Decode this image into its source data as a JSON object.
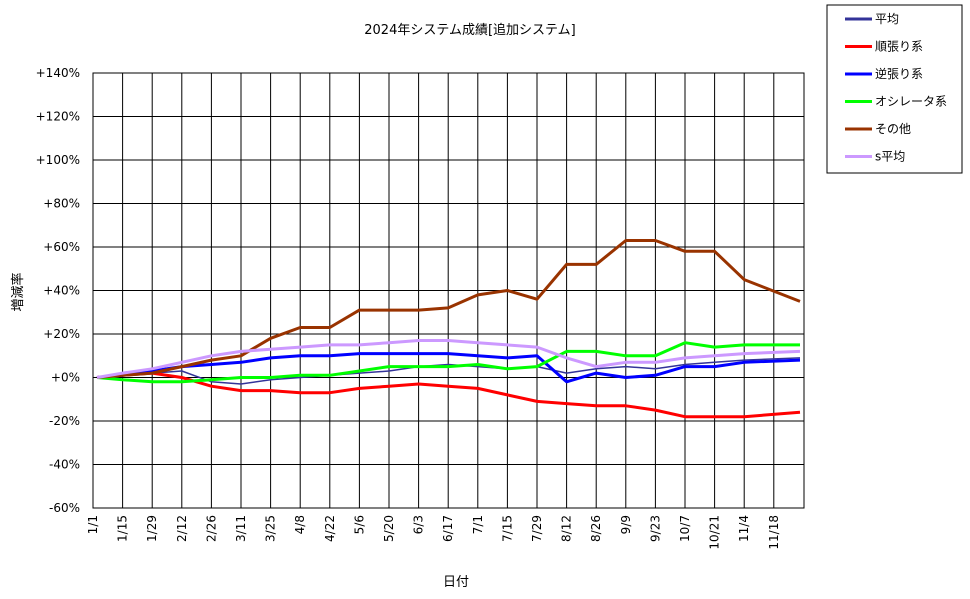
{
  "chart_data": {
    "type": "line",
    "title": "2024年システム成績[追加システム]",
    "xlabel": "日付",
    "ylabel": "増減率",
    "ylim": [
      -60,
      140
    ],
    "yticks": [
      140,
      120,
      100,
      80,
      60,
      40,
      20,
      0,
      -20,
      -40,
      -60
    ],
    "ytick_labels": [
      "+140%",
      "+120%",
      "+100%",
      "+80%",
      "+60%",
      "+40%",
      "+20%",
      "+0%",
      "-20%",
      "-40%",
      "-60%"
    ],
    "x_categories": [
      "1/1",
      "1/15",
      "1/29",
      "2/12",
      "2/26",
      "3/11",
      "3/25",
      "4/8",
      "4/22",
      "5/6",
      "5/20",
      "6/3",
      "6/17",
      "7/1",
      "7/15",
      "7/29",
      "8/12",
      "8/26",
      "9/9",
      "9/23",
      "10/7",
      "10/21",
      "11/4",
      "11/18"
    ],
    "grid": true,
    "legend_position": "top-right-outside",
    "series": [
      {
        "name": "平均",
        "color": "#333399",
        "values": [
          0,
          1,
          2,
          3,
          -2,
          -3,
          -1,
          0,
          1,
          2,
          3,
          5,
          6,
          5,
          4,
          5,
          2,
          4,
          5,
          4,
          6,
          7,
          8,
          9
        ]
      },
      {
        "name": "順張り系",
        "color": "#ff0000",
        "values": [
          0,
          1,
          2,
          0,
          -4,
          -6,
          -6,
          -7,
          -7,
          -5,
          -4,
          -3,
          -4,
          -5,
          -8,
          -11,
          -12,
          -13,
          -13,
          -15,
          -18,
          -18,
          -18,
          -16
        ]
      },
      {
        "name": "逆張り系",
        "color": "#0000ff",
        "values": [
          0,
          1,
          3,
          5,
          6,
          7,
          9,
          10,
          10,
          11,
          11,
          11,
          11,
          10,
          9,
          10,
          -2,
          2,
          0,
          1,
          5,
          5,
          7,
          8
        ]
      },
      {
        "name": "オシレータ系",
        "color": "#00ff00",
        "values": [
          0,
          -1,
          -2,
          -2,
          -1,
          0,
          0,
          1,
          1,
          3,
          5,
          5,
          5,
          6,
          4,
          5,
          12,
          12,
          10,
          10,
          16,
          14,
          15,
          15
        ]
      },
      {
        "name": "その他",
        "color": "#993300",
        "values": [
          0,
          1,
          2,
          5,
          8,
          10,
          18,
          23,
          23,
          31,
          31,
          31,
          32,
          38,
          40,
          36,
          52,
          52,
          63,
          63,
          58,
          58,
          45,
          35
        ]
      },
      {
        "name": "s平均",
        "color": "#cc99ff",
        "values": [
          0,
          2,
          4,
          7,
          10,
          12,
          13,
          14,
          15,
          15,
          16,
          17,
          17,
          16,
          15,
          14,
          9,
          5,
          7,
          7,
          9,
          10,
          11,
          12
        ]
      }
    ]
  }
}
